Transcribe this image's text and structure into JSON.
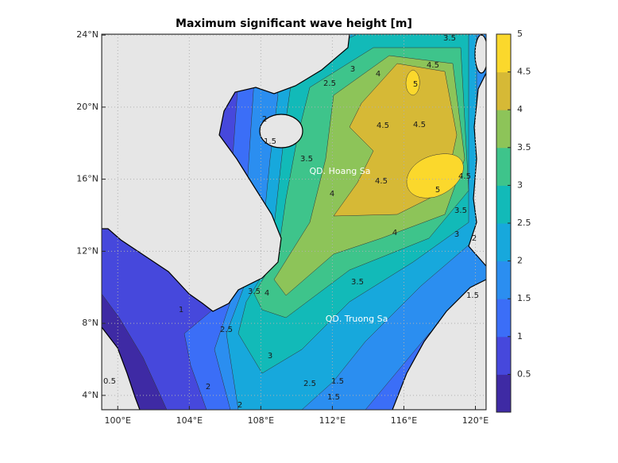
{
  "chart_data": {
    "type": "contourf",
    "title": "Maximum significant wave height [m]",
    "xlim": [
      99.1,
      120.6
    ],
    "ylim": [
      3.2,
      24.05
    ],
    "xticks": [
      {
        "value": 100,
        "label": "100°E"
      },
      {
        "value": 104,
        "label": "104°E"
      },
      {
        "value": 108,
        "label": "108°E"
      },
      {
        "value": 112,
        "label": "112°E"
      },
      {
        "value": 116,
        "label": "116°E"
      },
      {
        "value": 120,
        "label": "120°E"
      }
    ],
    "yticks": [
      {
        "value": 4,
        "label": "4°N"
      },
      {
        "value": 8,
        "label": "8°N"
      },
      {
        "value": 12,
        "label": "12°N"
      },
      {
        "value": 16,
        "label": "16°N"
      },
      {
        "value": 20,
        "label": "20°N"
      },
      {
        "value": 24,
        "label": "24°N"
      }
    ],
    "grid": true,
    "clim": [
      0,
      5
    ],
    "cticks": [
      0.5,
      1,
      1.5,
      2,
      2.5,
      3,
      3.5,
      4,
      4.5,
      5
    ],
    "colormap": [
      "#3e2aa4",
      "#4648dc",
      "#3b6ef7",
      "#2b8ef0",
      "#17a8dc",
      "#12bab8",
      "#3ec48b",
      "#8dc459",
      "#d6b936",
      "#fbd82c"
    ],
    "contour_labels": [
      5,
      4.5,
      4.5,
      4.5,
      4.5,
      5,
      4.5,
      4,
      4,
      4,
      3.5,
      3.5,
      3.5,
      4,
      3,
      3,
      3.5,
      2.5,
      2.5,
      2,
      2,
      1.5,
      1.5,
      1.5,
      1,
      2,
      1.5,
      2.5,
      3,
      3.5,
      2,
      0.5
    ],
    "annotations": [
      "QD. Hoang Sa",
      "QD. Truong Sa"
    ]
  }
}
